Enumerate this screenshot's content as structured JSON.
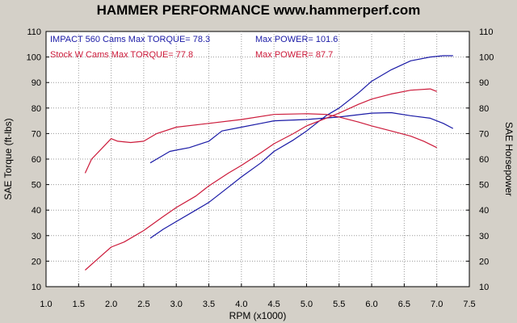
{
  "chart_data": {
    "type": "line",
    "title": "HAMMER PERFORMANCE www.hammerperf.com",
    "xlabel": "RPM (x1000)",
    "ylabel_left": "SAE Torque (ft-lbs)",
    "ylabel_right": "SAE Horsepower",
    "xlim": [
      1.0,
      7.5
    ],
    "ylim": [
      10,
      110
    ],
    "x_ticks": [
      "1.0",
      "1.5",
      "2.0",
      "2.5",
      "3.0",
      "3.5",
      "4.0",
      "4.5",
      "5.0",
      "5.5",
      "6.0",
      "6.5",
      "7.0",
      "7.5"
    ],
    "y_ticks": [
      "10",
      "20",
      "30",
      "40",
      "50",
      "60",
      "70",
      "80",
      "90",
      "100",
      "110"
    ],
    "grid": true,
    "legend": [
      {
        "text": "IMPACT 560 Cams  Max TORQUE= 78.3",
        "power_text": "Max POWER= 101.6",
        "color": "#1a1aa6"
      },
      {
        "text": "Stock W Cams  Max TORQUE= 77.8",
        "power_text": "Max POWER= 87.7",
        "color": "#cc1a3a"
      }
    ],
    "series": [
      {
        "name": "IMPACT 560 Cams",
        "quantity": "torque",
        "color": "#1a1aa6",
        "x": [
          2.6,
          2.7,
          2.9,
          3.0,
          3.2,
          3.5,
          3.7,
          4.0,
          4.3,
          4.5,
          5.0,
          5.5,
          6.0,
          6.3,
          6.6,
          6.9,
          7.1,
          7.25
        ],
        "y": [
          58.5,
          60,
          63,
          63.5,
          64.5,
          67,
          71,
          72.5,
          74,
          75,
          75.5,
          76.5,
          78,
          78.2,
          77,
          76,
          74,
          72
        ]
      },
      {
        "name": "IMPACT 560 Cams",
        "quantity": "power",
        "color": "#1a1aa6",
        "x": [
          2.6,
          2.8,
          3.0,
          3.3,
          3.5,
          3.8,
          4.0,
          4.3,
          4.5,
          4.8,
          5.0,
          5.3,
          5.5,
          5.8,
          6.0,
          6.3,
          6.6,
          6.9,
          7.1,
          7.25
        ],
        "y": [
          29,
          32.5,
          35.5,
          40,
          43,
          49,
          53,
          58.5,
          63,
          67.5,
          71,
          77,
          80,
          86,
          90.5,
          95,
          98.5,
          100,
          100.5,
          100.5
        ]
      },
      {
        "name": "Stock W Cams",
        "quantity": "torque",
        "color": "#cc1a3a",
        "x": [
          1.6,
          1.7,
          1.85,
          2.0,
          2.1,
          2.3,
          2.5,
          2.7,
          3.0,
          3.5,
          4.0,
          4.5,
          5.0,
          5.3,
          5.5,
          5.8,
          6.0,
          6.3,
          6.6,
          6.8,
          7.0
        ],
        "y": [
          54.5,
          60,
          64,
          68,
          67,
          66.5,
          67,
          70,
          72.5,
          74,
          75.5,
          77.5,
          77.8,
          77.5,
          76.5,
          74.5,
          73,
          71,
          69,
          67,
          64.5
        ]
      },
      {
        "name": "Stock W Cams",
        "quantity": "power",
        "color": "#cc1a3a",
        "x": [
          1.6,
          1.8,
          2.0,
          2.2,
          2.5,
          2.8,
          3.0,
          3.3,
          3.5,
          3.8,
          4.0,
          4.3,
          4.5,
          4.8,
          5.0,
          5.3,
          5.5,
          5.8,
          6.0,
          6.3,
          6.6,
          6.9,
          7.0
        ],
        "y": [
          16.5,
          21,
          25.5,
          27.5,
          32,
          37.5,
          41,
          45.5,
          49.5,
          54.5,
          57.5,
          62.5,
          66,
          70,
          73,
          76,
          78,
          81.5,
          83.5,
          85.5,
          87,
          87.5,
          86.5
        ]
      }
    ]
  }
}
